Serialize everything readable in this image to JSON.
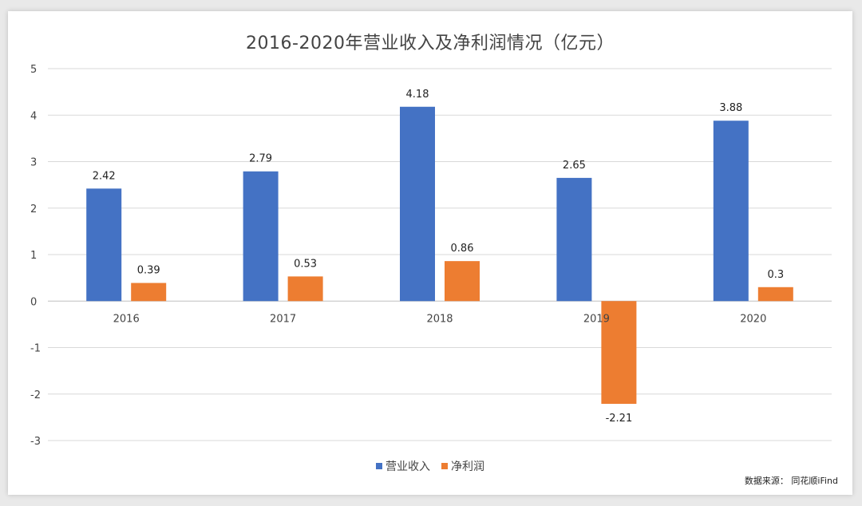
{
  "chart_data": {
    "type": "bar",
    "title": "2016-2020年营业收入及净利润情况（亿元）",
    "categories": [
      "2016",
      "2017",
      "2018",
      "2019",
      "2020"
    ],
    "series": [
      {
        "name": "营业收入",
        "values": [
          2.42,
          2.79,
          4.18,
          2.65,
          3.88
        ],
        "labels": [
          "2.42",
          "2.79",
          "4.18",
          "2.65",
          "3.88"
        ],
        "color": "#4472C4"
      },
      {
        "name": "净利润",
        "values": [
          0.39,
          0.53,
          0.86,
          -2.21,
          0.3
        ],
        "labels": [
          "0.39",
          "0.53",
          "0.86",
          "-2.21",
          "0.3"
        ],
        "color": "#ED7D31"
      }
    ],
    "ylim": [
      -3,
      5
    ],
    "yticks": [
      5,
      4,
      3,
      2,
      1,
      0,
      -1,
      -2,
      -3
    ],
    "xlabel": "",
    "ylabel": "",
    "grid": true,
    "legend_position": "bottom"
  },
  "source": "数据来源：  同花顺iFind"
}
